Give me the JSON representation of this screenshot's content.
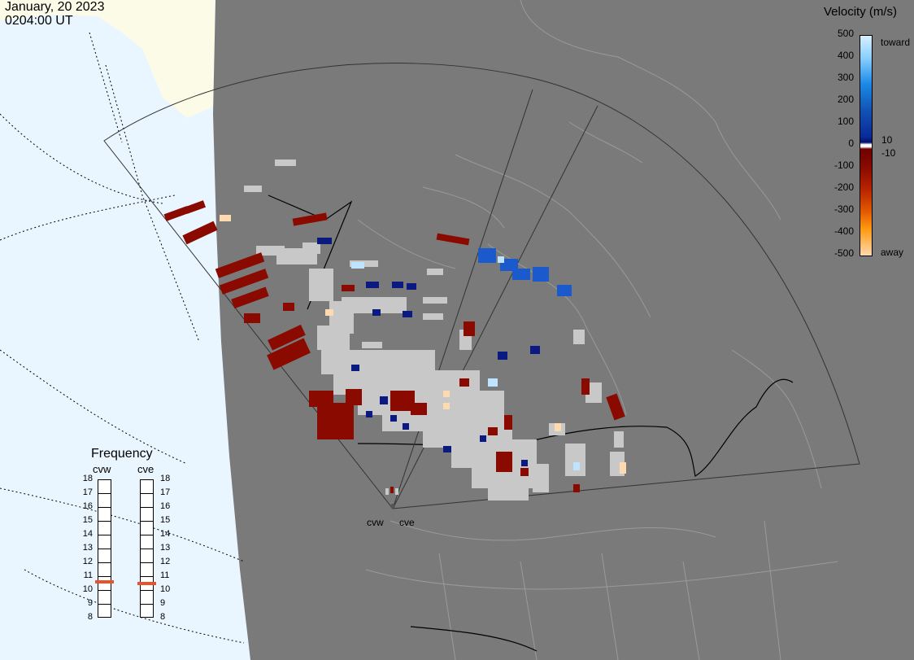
{
  "header": {
    "date": "January, 20 2023",
    "time": "0204:00 UT"
  },
  "legend": {
    "title": "Velocity (m/s)",
    "ticks": [
      "500",
      "400",
      "300",
      "200",
      "100",
      "0",
      "-100",
      "-200",
      "-300",
      "-400",
      "-500"
    ],
    "label_toward": "toward",
    "label_away": "away",
    "label_pos": "10",
    "label_neg": "-10",
    "colors": {
      "toward_light": "#d8f0ff",
      "toward_mid": "#1a8ae6",
      "toward_dark": "#0a2a96",
      "away_dark": "#8a0a00",
      "away_mid": "#e25a00",
      "away_light": "#ffd9b0",
      "ground_scatter": "#c8c8c8"
    }
  },
  "frequency": {
    "title": "Frequency",
    "radars": [
      {
        "name": "cvw",
        "value_mhz": 10.6
      },
      {
        "name": "cve",
        "value_mhz": 10.5
      }
    ],
    "ticks": [
      "18",
      "17",
      "16",
      "15",
      "14",
      "13",
      "12",
      "11",
      "10",
      "9",
      "8"
    ],
    "range": [
      8,
      18
    ]
  },
  "sites": [
    "cvw",
    "cve"
  ],
  "map": {
    "night_color": "#7a7a7a",
    "ocean_color": "#eaf6ff",
    "land_day_color": "#fbfbe8"
  }
}
